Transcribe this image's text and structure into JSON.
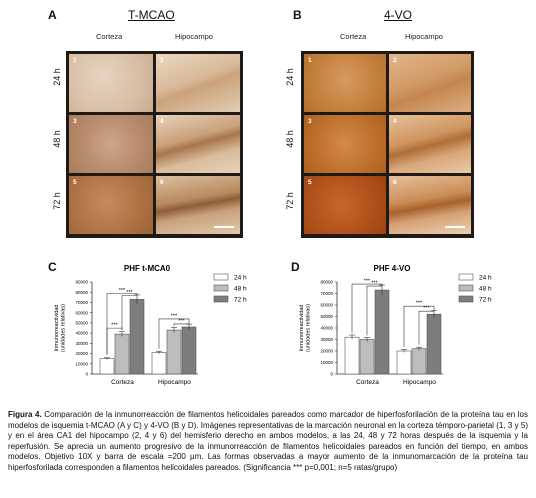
{
  "panels": {
    "A": {
      "letter": "A",
      "title": "T-MCAO"
    },
    "B": {
      "letter": "B",
      "title": "4-VO"
    },
    "C": {
      "letter": "C"
    },
    "D": {
      "letter": "D"
    }
  },
  "image_columns": [
    "Corteza",
    "Hipocampo"
  ],
  "image_rows": [
    "24 h",
    "48 h",
    "72 h"
  ],
  "tile_numbers": [
    "1",
    "2",
    "3",
    "4",
    "5",
    "6"
  ],
  "chart_data": [
    {
      "type": "bar",
      "title": "PHF t-MCA0",
      "ylabel": "Inmunorreactividad (unidades relativas)",
      "ylim": [
        0,
        90000
      ],
      "yticks": [
        "0",
        "10000",
        "20000",
        "30000",
        "40000",
        "50000",
        "60000",
        "70000",
        "80000",
        "90000"
      ],
      "categories": [
        "Corteza",
        "Hipocampo"
      ],
      "series": [
        {
          "name": "24 h",
          "color": "#ffffff",
          "values": [
            15000,
            21000
          ]
        },
        {
          "name": "48 h",
          "color": "#bdbdbd",
          "values": [
            39000,
            43000
          ]
        },
        {
          "name": "72 h",
          "color": "#7d7d7d",
          "values": [
            73000,
            46000
          ]
        }
      ],
      "significance": [
        "***",
        "***",
        "***",
        "***",
        "***"
      ],
      "legend_position": "top-right",
      "grid": false
    },
    {
      "type": "bar",
      "title": "PHF 4-VO",
      "ylabel": "Inmunorreactividad (unidades relativas)",
      "ylim": [
        0,
        80000
      ],
      "yticks": [
        "0",
        "10000",
        "20000",
        "30000",
        "40000",
        "50000",
        "60000",
        "70000",
        "80000"
      ],
      "categories": [
        "Corteza",
        "Hipocampo"
      ],
      "series": [
        {
          "name": "24 h",
          "color": "#ffffff",
          "values": [
            32000,
            20000
          ]
        },
        {
          "name": "48 h",
          "color": "#bdbdbd",
          "values": [
            30000,
            22000
          ]
        },
        {
          "name": "72 h",
          "color": "#7d7d7d",
          "values": [
            73000,
            52000
          ]
        }
      ],
      "significance": [
        "***",
        "***",
        "***",
        "***"
      ],
      "legend_position": "top-right",
      "grid": false
    }
  ],
  "caption": {
    "bold": "Figura 4.",
    "text": " Comparación de la inmunorreacción de filamentos helicoidales pareados como marcador de hiperfosforilación de la proteína tau en los modelos de isquemia t-MCAO (A y C) y 4-VO (B y D). Imágenes representativas de la marcación neuronal en la corteza témporo-parietal (1, 3 y 5) y en el área CA1 del hipocampo (2, 4 y 6) del hemisferio derecho en ambos modelos, a las 24, 48 y 72 horas después de la isquemia y la reperfusión. Se aprecia un aumento progresivo de la inmunorreacción de filamentos helicoidales pareados en función del tiempo, en ambos modelos. Objetivo 10X y barra de escala =200 μm. Las formas observadas a mayor aumento de la inmunomarcación de la proteína tau hiperfosforilada corresponden a filamentos helicoidales pareados. (Significancia *** p=0,001; n=5 ratas/grupo)"
  }
}
